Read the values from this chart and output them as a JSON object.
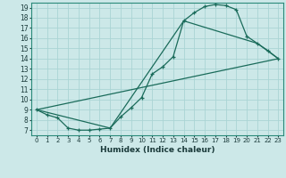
{
  "title": "",
  "xlabel": "Humidex (Indice chaleur)",
  "background_color": "#cce8e8",
  "grid_color": "#aad4d4",
  "line_color": "#1a6b5a",
  "xlim": [
    -0.5,
    23.5
  ],
  "ylim": [
    6.5,
    19.5
  ],
  "xticks": [
    0,
    1,
    2,
    3,
    4,
    5,
    6,
    7,
    8,
    9,
    10,
    11,
    12,
    13,
    14,
    15,
    16,
    17,
    18,
    19,
    20,
    21,
    22,
    23
  ],
  "yticks": [
    7,
    8,
    9,
    10,
    11,
    12,
    13,
    14,
    15,
    16,
    17,
    18,
    19
  ],
  "line1_x": [
    0,
    1,
    2,
    3,
    4,
    5,
    6,
    7,
    8,
    9,
    10,
    11,
    12,
    13,
    14,
    15,
    16,
    17,
    18,
    19,
    20,
    21,
    22,
    23
  ],
  "line1_y": [
    9.0,
    8.5,
    8.2,
    7.2,
    7.0,
    7.0,
    7.1,
    7.2,
    8.3,
    9.2,
    10.2,
    12.5,
    13.2,
    14.2,
    17.7,
    18.5,
    19.1,
    19.3,
    19.2,
    18.8,
    16.2,
    15.5,
    14.8,
    14.0
  ],
  "line2_x": [
    0,
    7,
    14,
    21,
    23
  ],
  "line2_y": [
    9.0,
    7.2,
    17.7,
    15.5,
    14.0
  ],
  "line3_x": [
    0,
    23
  ],
  "line3_y": [
    9.0,
    14.0
  ]
}
